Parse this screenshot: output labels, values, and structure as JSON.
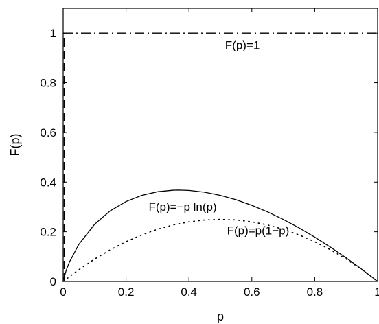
{
  "chart_data": {
    "type": "line",
    "title": "",
    "xlabel": "p",
    "ylabel": "F(p)",
    "xlim": [
      0,
      1
    ],
    "ylim": [
      0,
      1.1
    ],
    "xticks": [
      0,
      0.2,
      0.4,
      0.6,
      0.8,
      1
    ],
    "xtick_labels": [
      "0",
      "0.2",
      "0.4",
      "0.6",
      "0.8",
      "1"
    ],
    "yticks": [
      0,
      0.2,
      0.4,
      0.6,
      0.8,
      1
    ],
    "ytick_labels": [
      "0",
      "0.2",
      "0.4",
      "0.6",
      "0.8",
      "1"
    ],
    "grid": false,
    "series": [
      {
        "name": "F(p)=1",
        "style": "dash-dot",
        "x": [
          0,
          1
        ],
        "y": [
          1,
          1
        ]
      },
      {
        "name": "F(p)=−p ln(p)",
        "style": "solid",
        "x": [
          0.001,
          0.01,
          0.02,
          0.05,
          0.1,
          0.15,
          0.2,
          0.25,
          0.3,
          0.35,
          0.3679,
          0.4,
          0.45,
          0.5,
          0.55,
          0.6,
          0.65,
          0.7,
          0.75,
          0.8,
          0.85,
          0.9,
          0.95,
          1.0
        ],
        "y": [
          0.0069,
          0.0461,
          0.0782,
          0.1498,
          0.2303,
          0.2846,
          0.3219,
          0.3466,
          0.3612,
          0.3674,
          0.3679,
          0.3665,
          0.3593,
          0.3466,
          0.3288,
          0.3065,
          0.28,
          0.2497,
          0.2158,
          0.1785,
          0.1381,
          0.0948,
          0.0487,
          0.0
        ]
      },
      {
        "name": "F(p)=p(1−p)",
        "style": "dotted",
        "x": [
          0,
          0.05,
          0.1,
          0.15,
          0.2,
          0.25,
          0.3,
          0.35,
          0.4,
          0.45,
          0.5,
          0.55,
          0.6,
          0.65,
          0.7,
          0.75,
          0.8,
          0.85,
          0.9,
          0.95,
          1.0
        ],
        "y": [
          0,
          0.0475,
          0.09,
          0.1275,
          0.16,
          0.1875,
          0.21,
          0.2275,
          0.24,
          0.2475,
          0.25,
          0.2475,
          0.24,
          0.2275,
          0.21,
          0.1875,
          0.16,
          0.1275,
          0.09,
          0.0475,
          0.0
        ]
      },
      {
        "name": "",
        "style": "dashed",
        "x": [
          0.003,
          0.003
        ],
        "y": [
          0,
          1
        ]
      }
    ],
    "annotations": [
      {
        "text": "F(p)=1",
        "x": 0.57,
        "y": 0.935
      },
      {
        "text": "F(p)=−p ln(p)",
        "x": 0.38,
        "y": 0.285
      },
      {
        "text": "F(p)=p(1−p)",
        "x": 0.62,
        "y": 0.19
      }
    ]
  }
}
